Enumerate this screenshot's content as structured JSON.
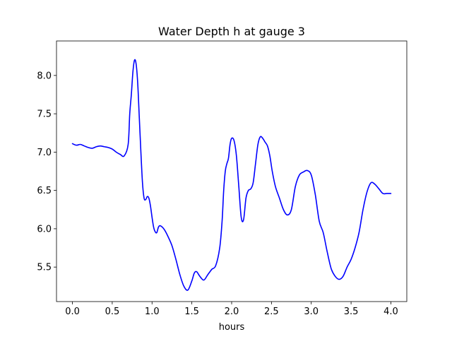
{
  "chart_data": {
    "type": "line",
    "title": "Water Depth h at gauge 3",
    "xlabel": "hours",
    "ylabel": "",
    "xlim": [
      -0.2,
      4.2
    ],
    "ylim": [
      5.05,
      8.45
    ],
    "xticks": [
      0.0,
      0.5,
      1.0,
      1.5,
      2.0,
      2.5,
      3.0,
      3.5,
      4.0
    ],
    "xtick_labels": [
      "0.0",
      "0.5",
      "1.0",
      "1.5",
      "2.0",
      "2.5",
      "3.0",
      "3.5",
      "4.0"
    ],
    "yticks": [
      5.5,
      6.0,
      6.5,
      7.0,
      7.5,
      8.0
    ],
    "ytick_labels": [
      "5.5",
      "6.0",
      "6.5",
      "7.0",
      "7.5",
      "8.0"
    ],
    "grid": false,
    "series": [
      {
        "color": "#0000ff",
        "x": [
          0.0,
          0.05,
          0.1,
          0.15,
          0.2,
          0.25,
          0.3,
          0.35,
          0.4,
          0.45,
          0.5,
          0.55,
          0.6,
          0.65,
          0.7,
          0.72,
          0.74,
          0.76,
          0.78,
          0.8,
          0.82,
          0.84,
          0.86,
          0.88,
          0.9,
          0.92,
          0.94,
          0.96,
          0.98,
          1.0,
          1.02,
          1.04,
          1.06,
          1.08,
          1.1,
          1.13,
          1.16,
          1.2,
          1.25,
          1.3,
          1.35,
          1.4,
          1.45,
          1.5,
          1.53,
          1.56,
          1.6,
          1.65,
          1.7,
          1.75,
          1.8,
          1.85,
          1.88,
          1.9,
          1.92,
          1.94,
          1.96,
          1.98,
          2.0,
          2.03,
          2.06,
          2.09,
          2.12,
          2.15,
          2.18,
          2.21,
          2.24,
          2.27,
          2.3,
          2.33,
          2.36,
          2.39,
          2.42,
          2.45,
          2.48,
          2.51,
          2.55,
          2.6,
          2.65,
          2.7,
          2.75,
          2.8,
          2.85,
          2.9,
          2.95,
          3.0,
          3.05,
          3.1,
          3.15,
          3.2,
          3.25,
          3.3,
          3.35,
          3.4,
          3.45,
          3.5,
          3.55,
          3.6,
          3.65,
          3.7,
          3.75,
          3.8,
          3.85,
          3.9,
          3.95,
          4.0
        ],
        "y": [
          7.11,
          7.09,
          7.1,
          7.08,
          7.06,
          7.05,
          7.07,
          7.08,
          7.07,
          7.06,
          7.04,
          7.0,
          6.97,
          6.95,
          7.1,
          7.5,
          7.75,
          8.05,
          8.2,
          8.15,
          7.9,
          7.45,
          7.0,
          6.6,
          6.4,
          6.38,
          6.42,
          6.4,
          6.3,
          6.15,
          6.02,
          5.96,
          5.95,
          6.02,
          6.04,
          6.02,
          5.98,
          5.9,
          5.78,
          5.6,
          5.4,
          5.25,
          5.2,
          5.32,
          5.42,
          5.44,
          5.38,
          5.33,
          5.4,
          5.47,
          5.52,
          5.75,
          6.1,
          6.5,
          6.75,
          6.85,
          6.92,
          7.1,
          7.18,
          7.15,
          6.95,
          6.55,
          6.15,
          6.12,
          6.4,
          6.5,
          6.52,
          6.6,
          6.85,
          7.1,
          7.2,
          7.18,
          7.13,
          7.08,
          6.95,
          6.75,
          6.55,
          6.4,
          6.25,
          6.18,
          6.25,
          6.55,
          6.7,
          6.74,
          6.76,
          6.7,
          6.45,
          6.1,
          5.95,
          5.7,
          5.48,
          5.38,
          5.34,
          5.38,
          5.5,
          5.6,
          5.75,
          5.95,
          6.25,
          6.48,
          6.6,
          6.58,
          6.52,
          6.46,
          6.46,
          6.46
        ]
      }
    ]
  }
}
